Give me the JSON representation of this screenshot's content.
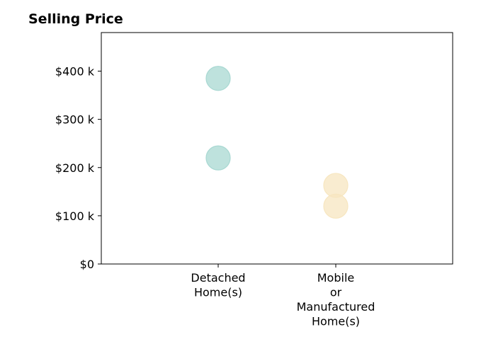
{
  "chart_data": {
    "type": "scatter",
    "title": "Selling Price",
    "xlabel": "",
    "ylabel": "",
    "categories": [
      [
        "Detached",
        "Home(s)"
      ],
      [
        "Mobile",
        "or",
        "Manufactured",
        "Home(s)"
      ]
    ],
    "ylim": [
      0,
      480000
    ],
    "yticks": [
      {
        "value": 0,
        "label": "$0"
      },
      {
        "value": 100000,
        "label": "$100 k"
      },
      {
        "value": 200000,
        "label": "$200 k"
      },
      {
        "value": 300000,
        "label": "$300 k"
      },
      {
        "value": 400000,
        "label": "$400 k"
      }
    ],
    "series": [
      {
        "category": 0,
        "values": [
          385000,
          220000
        ],
        "color": "#a8d8d2"
      },
      {
        "category": 1,
        "values": [
          163000,
          120000
        ],
        "color": "#f7e6c0"
      }
    ],
    "grid": false
  }
}
